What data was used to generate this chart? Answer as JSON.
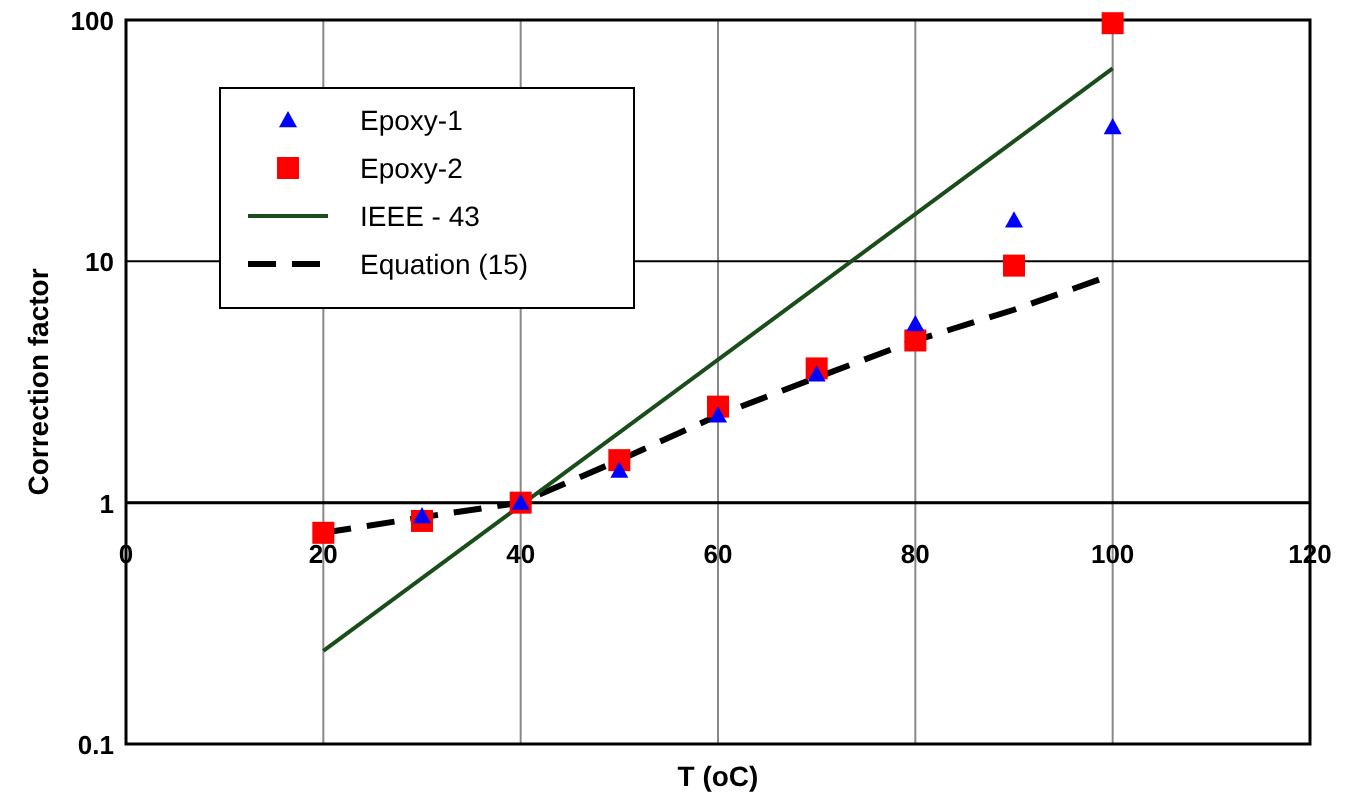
{
  "chart_data": {
    "type": "scatter",
    "xlabel": "T (oC)",
    "ylabel": "Correction factor",
    "log": "y",
    "grid": true,
    "legend": "top left",
    "xlim": [
      0,
      120
    ],
    "xticks": [
      0,
      20,
      40,
      60,
      80,
      100,
      120
    ],
    "ylim": [
      0.1,
      100
    ],
    "yticks": [
      0.1,
      1,
      10,
      100
    ],
    "x": [
      20,
      30,
      40,
      50,
      60,
      70,
      80,
      90,
      100
    ],
    "series": [
      {
        "name": "Epoxy-1",
        "marker": "triangle",
        "color": "#0000ff",
        "values": [
          null,
          0.88,
          1.0,
          1.36,
          2.3,
          3.4,
          5.5,
          14.8,
          36
        ]
      },
      {
        "name": "Epoxy-2",
        "marker": "square",
        "color": "#ff0000",
        "values": [
          0.75,
          0.84,
          1.0,
          1.5,
          2.5,
          3.6,
          4.7,
          9.6,
          97
        ]
      },
      {
        "name": "IEEE - 43",
        "type": "line",
        "line_style": "solid",
        "color": "#1a4d1a",
        "x": [
          20,
          100
        ],
        "values": [
          0.243,
          63
        ]
      },
      {
        "name": "Equation (15)",
        "type": "line",
        "line_style": "dashed",
        "color": "#000000",
        "values": [
          0.75,
          0.87,
          1.0,
          1.5,
          2.3,
          3.3,
          4.7,
          6.3,
          8.8
        ]
      }
    ]
  }
}
